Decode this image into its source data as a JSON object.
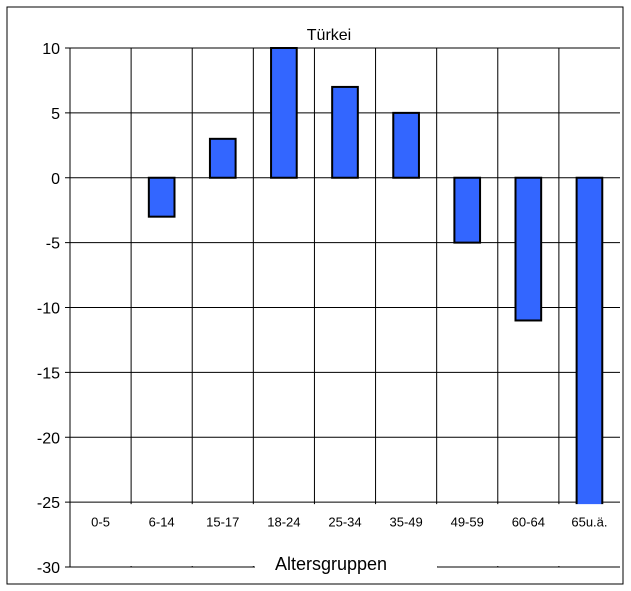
{
  "chart_data": {
    "type": "bar",
    "title": "Türkei",
    "xlabel": "Altersgruppen",
    "ylabel": "",
    "categories": [
      "0-5",
      "6-14",
      "15-17",
      "18-24",
      "25-34",
      "35-49",
      "49-59",
      "60-64",
      "65u.ä."
    ],
    "values": [
      0,
      -3,
      3,
      10,
      7,
      5,
      -5,
      -11,
      -30
    ],
    "ylim": [
      -30,
      10
    ],
    "yticks": [
      10,
      5,
      0,
      -5,
      -10,
      -15,
      -20,
      -25,
      -30
    ],
    "grid": true,
    "bar_color": "#3366ff",
    "bar_stroke": "#000000"
  }
}
